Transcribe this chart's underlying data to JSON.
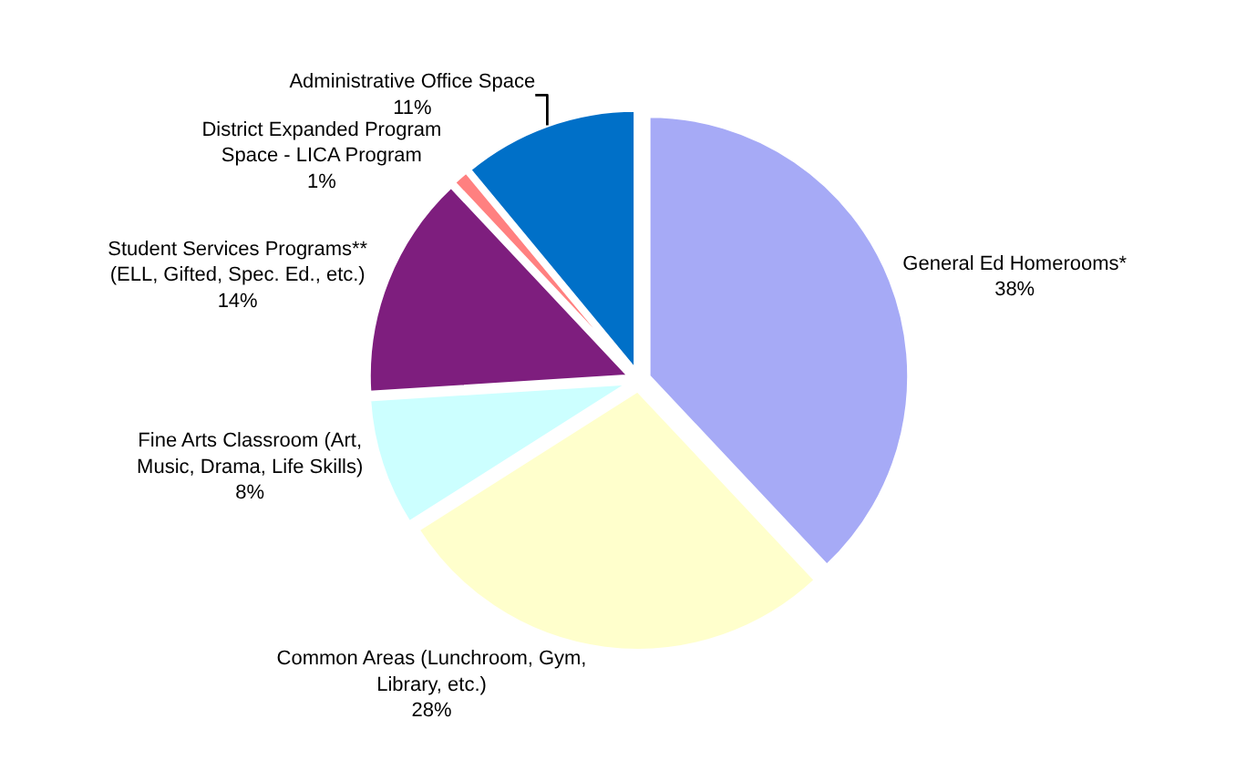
{
  "chart_data": {
    "type": "pie",
    "categories": [
      "General Ed Homerooms*",
      "Common Areas (Lunchroom, Gym, Library, etc.)",
      "Fine Arts Classroom (Art, Music, Drama, Life Skills)",
      "Student Services Programs** (ELL, Gifted, Spec. Ed., etc.)",
      "District Expanded Program Space - LICA Program",
      "Administrative Office Space"
    ],
    "values": [
      38,
      28,
      8,
      14,
      1,
      11
    ],
    "value_labels": [
      "38%",
      "28%",
      "8%",
      "14%",
      "1%",
      "11%"
    ],
    "colors": [
      "#a6aaf6",
      "#ffffcc",
      "#ccffff",
      "#7e1e7e",
      "#ff8080",
      "#0070c8"
    ],
    "legend": false
  }
}
